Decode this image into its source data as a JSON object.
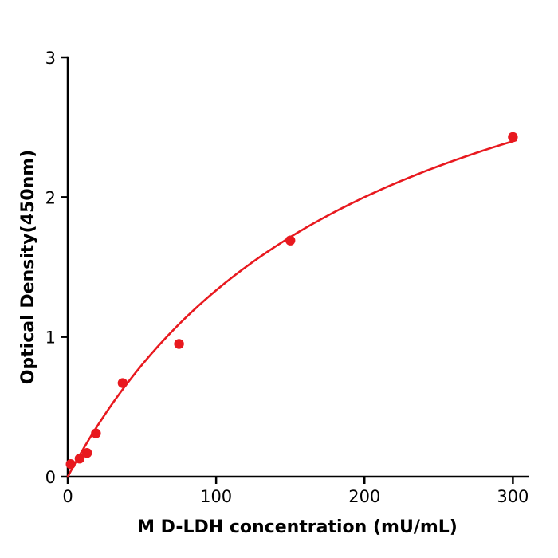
{
  "chart_data": {
    "type": "scatter",
    "title": "",
    "xlabel": "M  D-LDH concentration (mU/mL)",
    "ylabel": "Optical Density(450nm)",
    "xlim": [
      0,
      310
    ],
    "ylim": [
      0,
      3
    ],
    "x_ticks": [
      0,
      100,
      200,
      300
    ],
    "y_ticks": [
      0,
      1,
      2,
      3
    ],
    "points": [
      {
        "x": 2,
        "y": 0.09
      },
      {
        "x": 8,
        "y": 0.13
      },
      {
        "x": 13,
        "y": 0.17
      },
      {
        "x": 19,
        "y": 0.31
      },
      {
        "x": 37,
        "y": 0.67
      },
      {
        "x": 75,
        "y": 0.95
      },
      {
        "x": 150,
        "y": 1.69
      },
      {
        "x": 300,
        "y": 2.43
      }
    ],
    "fit": {
      "model": "michaelis-menten",
      "vmax": 4.0,
      "km": 200
    },
    "colors": {
      "series": "#e8191f",
      "axis": "#000000"
    },
    "grid": false,
    "legend": null
  }
}
